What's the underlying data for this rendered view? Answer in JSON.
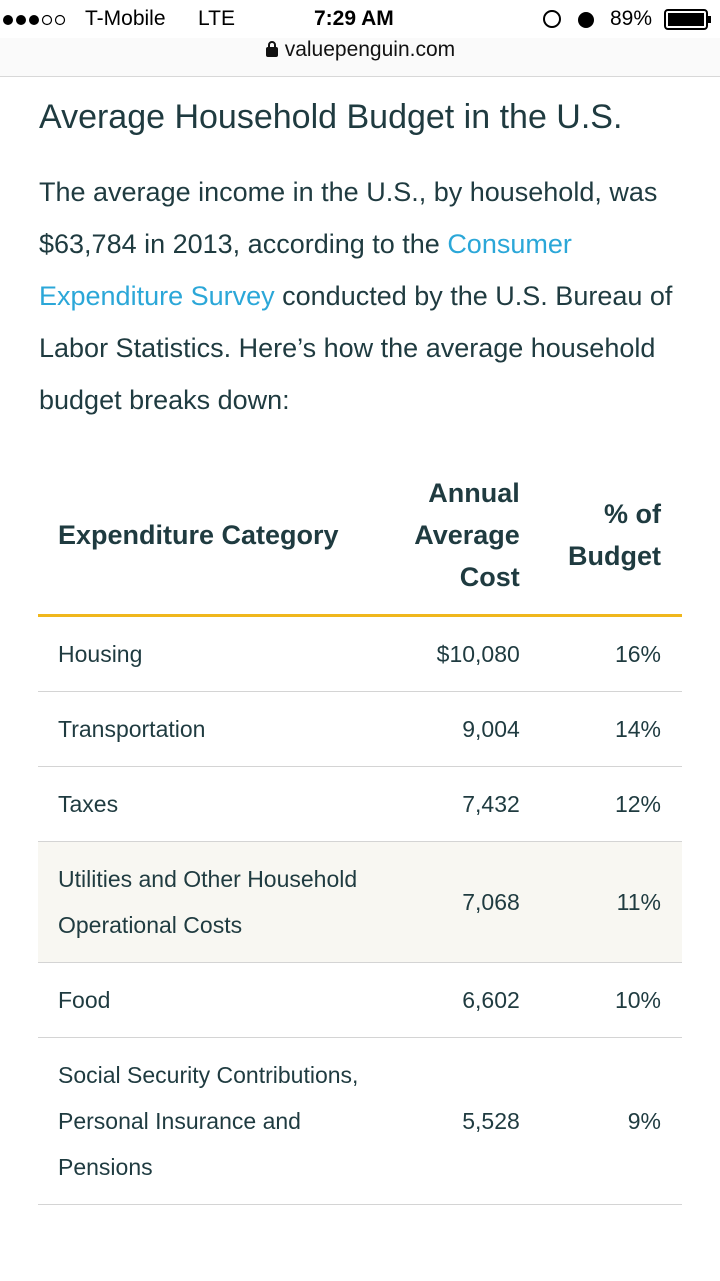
{
  "status_bar": {
    "carrier": "T-Mobile",
    "network": "LTE",
    "time": "7:29 AM",
    "battery": "89%"
  },
  "address_bar": {
    "url": "valuepenguin.com"
  },
  "article": {
    "title": "Average Household Budget in the U.S.",
    "paragraph": {
      "before_link": "The average income in the U.S., by household, was $63,784 in 2013, according to the ",
      "link": "Consumer Expenditure Survey",
      "after_link": " conducted by the U.S. Bureau of Labor Statistics. Here’s how the average household budget breaks down:"
    }
  },
  "table": {
    "headers": [
      "Expenditure Category",
      "Annual Average Cost",
      "% of Budget"
    ],
    "rows": [
      [
        "Housing",
        "$10,080",
        "16%"
      ],
      [
        "Transportation",
        "9,004",
        "14%"
      ],
      [
        "Taxes",
        "7,432",
        "12%"
      ],
      [
        "Utilities and Other Household Operational Costs",
        "7,068",
        "11%"
      ],
      [
        "Food",
        "6,602",
        "10%"
      ],
      [
        "Social Security Contributions, Personal Insurance and Pensions",
        "5,528",
        "9%"
      ]
    ]
  }
}
